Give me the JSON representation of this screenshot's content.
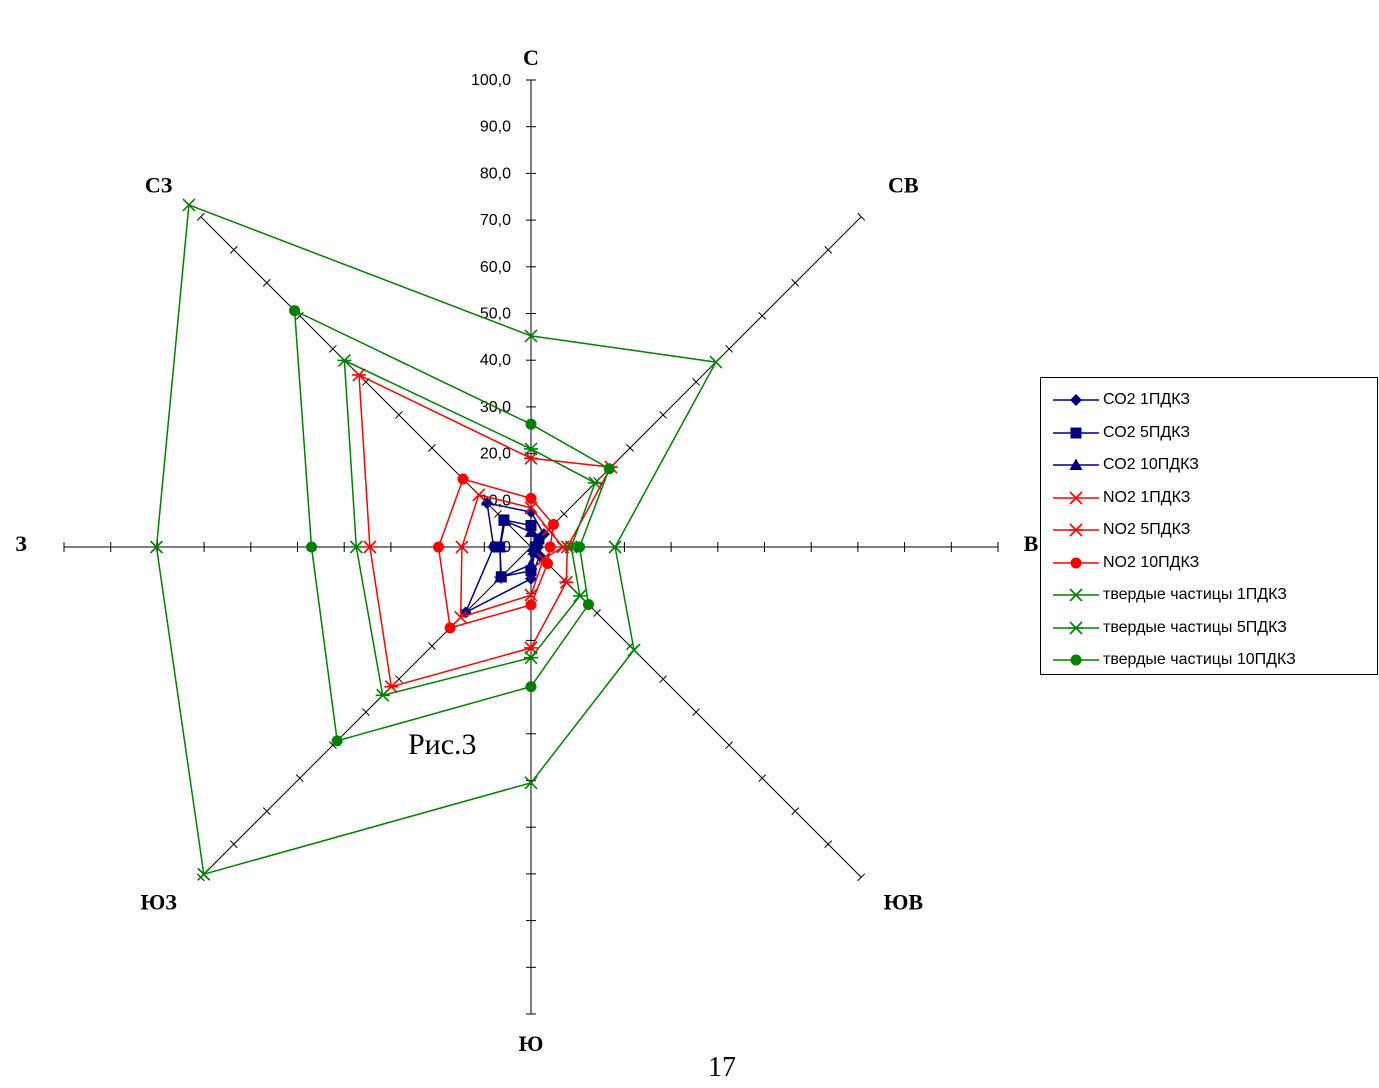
{
  "chart_data": {
    "type": "radar",
    "directions": [
      "С",
      "СВ",
      "В",
      "ЮВ",
      "Ю",
      "ЮЗ",
      "З",
      "СЗ"
    ],
    "rmax": 100,
    "tick_step": 10,
    "tick_labels": [
      "0,0",
      "10,0",
      "20,0",
      "30,0",
      "40,0",
      "50,0",
      "60,0",
      "70,0",
      "80,0",
      "90,0",
      "100,0"
    ],
    "series": [
      {
        "name": "СО2 1ПДКЗ",
        "color": "#000080",
        "marker": "diamond",
        "values": [
          7.5,
          3.9,
          1.5,
          2.6,
          6.8,
          19.8,
          8.0,
          13.3
        ]
      },
      {
        "name": "СО2 5ПДКЗ",
        "color": "#000080",
        "marker": "square",
        "values": [
          4.6,
          2.4,
          0.9,
          1.3,
          5.1,
          9.0,
          6.7,
          8.2
        ]
      },
      {
        "name": "СО2 10ПДКЗ",
        "color": "#000080",
        "marker": "triangle",
        "values": [
          3.2,
          1.7,
          0.6,
          0.9,
          3.8,
          9.2,
          6.6,
          7.9
        ]
      },
      {
        "name": "NO2 1ПДКЗ",
        "color": "#ff0000",
        "marker": "x",
        "values": [
          8.4,
          5.3,
          6.8,
          3.7,
          10.3,
          21.3,
          14.8,
          15.8
        ]
      },
      {
        "name": "NO2 5ПДКЗ",
        "color": "#ff0000",
        "marker": "star",
        "values": [
          19.0,
          24.2,
          7.8,
          10.7,
          21.6,
          42.3,
          34.5,
          52.1
        ]
      },
      {
        "name": "NO2 10ПДКЗ",
        "color": "#ff0000",
        "marker": "circle",
        "values": [
          10.4,
          6.8,
          4.1,
          5.0,
          12.4,
          24.5,
          19.8,
          20.6
        ]
      },
      {
        "name": "твердые частицы 1ПДКЗ",
        "color": "#008000",
        "marker": "x",
        "values": [
          45.2,
          56.0,
          18.0,
          31.2,
          50.5,
          99.1,
          80.2,
          103.6
        ]
      },
      {
        "name": "твердые частицы 5ПДКЗ",
        "color": "#008000",
        "marker": "star",
        "values": [
          21.0,
          19.4,
          8.6,
          14.8,
          23.7,
          44.9,
          37.4,
          56.5
        ]
      },
      {
        "name": "твердые частицы 10ПДКЗ",
        "color": "#008000",
        "marker": "circle",
        "values": [
          26.3,
          23.7,
          10.4,
          17.4,
          29.9,
          58.7,
          47.0,
          71.6
        ]
      }
    ]
  },
  "caption": "Рис.3",
  "page_number": "17"
}
